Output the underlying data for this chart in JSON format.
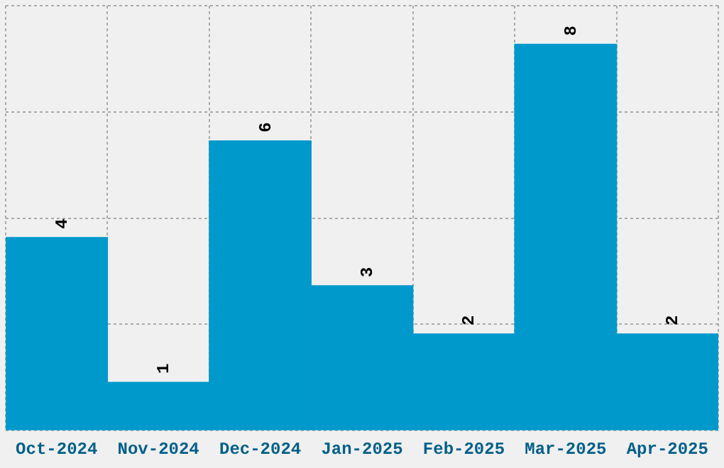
{
  "chart_data": {
    "type": "bar",
    "categories": [
      "Oct-2024",
      "Nov-2024",
      "Dec-2024",
      "Jan-2025",
      "Feb-2025",
      "Mar-2025",
      "Apr-2025"
    ],
    "values": [
      4,
      1,
      6,
      3,
      2,
      8,
      2
    ],
    "color": "#0099cc",
    "data_labels": true,
    "grid": true,
    "legend": false,
    "tick_labels": "x",
    "ylim": [
      0,
      8.8
    ],
    "yticks": [
      {
        "value": 0,
        "label": null
      },
      {
        "value": 2.2,
        "label": null
      },
      {
        "value": 4.4,
        "label": null
      },
      {
        "value": 6.6,
        "label": null
      },
      {
        "value": 8.8,
        "label": null
      }
    ]
  }
}
